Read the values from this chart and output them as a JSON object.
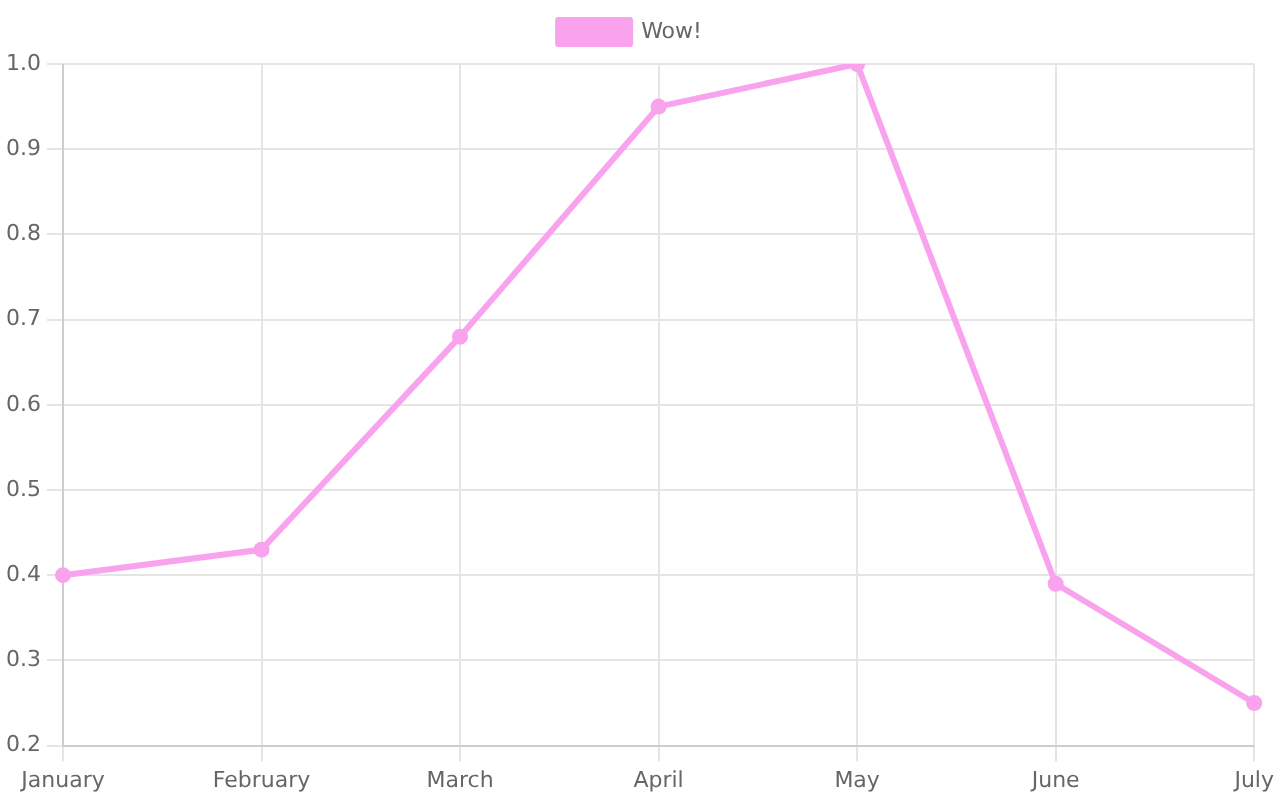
{
  "chart_data": {
    "type": "line",
    "categories": [
      "January",
      "February",
      "March",
      "April",
      "May",
      "June",
      "July"
    ],
    "series": [
      {
        "name": "Wow!",
        "color": "#f9a3ef",
        "values": [
          0.4,
          0.43,
          0.68,
          0.95,
          1.0,
          0.39,
          0.25
        ]
      }
    ],
    "ylim": [
      0.2,
      1.0
    ],
    "yticks": [
      0.2,
      0.3,
      0.4,
      0.5,
      0.6,
      0.7,
      0.8,
      0.9,
      {
        "value": 1,
        "label": "1.0"
      }
    ],
    "grid": true,
    "legend": "top",
    "marker": "circle",
    "line_style": "solid"
  }
}
